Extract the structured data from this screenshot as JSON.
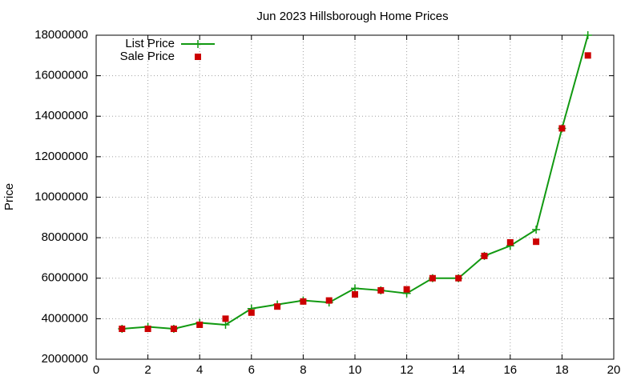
{
  "chart_data": {
    "type": "line",
    "title": "Jun 2023 Hillsborough Home Prices",
    "y_label": "Price",
    "x": [
      1,
      2,
      3,
      4,
      5,
      6,
      7,
      8,
      9,
      10,
      11,
      12,
      13,
      14,
      15,
      16,
      17,
      18,
      19
    ],
    "series": [
      {
        "name": "List Price",
        "color": "#119911",
        "mode": "linespoints",
        "values": [
          3500000,
          3600000,
          3500000,
          3800000,
          3700000,
          4500000,
          4700000,
          4900000,
          4800000,
          5500000,
          5400000,
          5250000,
          6000000,
          6000000,
          7100000,
          7600000,
          8400000,
          13400000,
          18000000
        ]
      },
      {
        "name": "Sale Price",
        "color": "#cc0000",
        "mode": "points",
        "values": [
          3500000,
          3500000,
          3500000,
          3700000,
          4000000,
          4300000,
          4600000,
          4850000,
          4900000,
          5200000,
          5400000,
          5450000,
          6000000,
          6000000,
          7100000,
          7770000,
          7800000,
          13400000,
          17000000
        ]
      }
    ],
    "xlim": [
      0,
      20
    ],
    "xticks": [
      0,
      2,
      4,
      6,
      8,
      10,
      12,
      14,
      16,
      18,
      20
    ],
    "ylim": [
      2000000,
      18000000
    ],
    "yticks": [
      2000000,
      4000000,
      6000000,
      8000000,
      10000000,
      12000000,
      14000000,
      16000000,
      18000000
    ],
    "grid": true,
    "legend": "top-left"
  }
}
